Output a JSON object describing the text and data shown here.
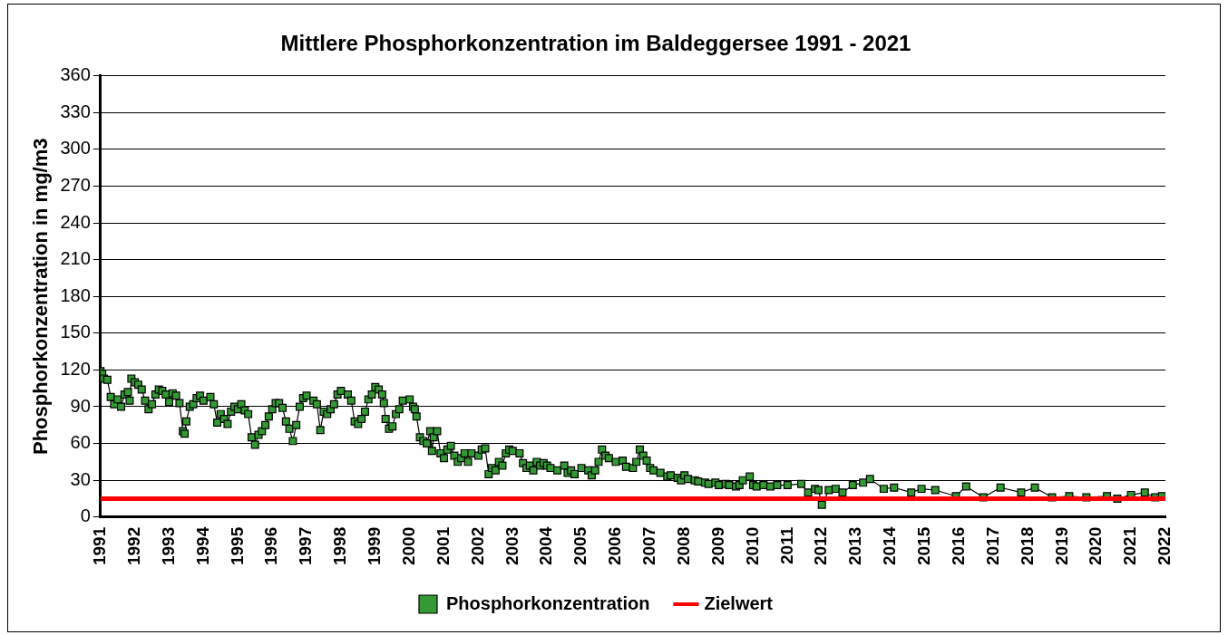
{
  "chart_data": {
    "type": "line",
    "title": "Mittlere Phosphorkonzentration im Baldeggersee 1991 - 2021",
    "ylabel": "Phosphorkonzentration in mg/m3",
    "xlim": [
      1991,
      2022
    ],
    "xticks": [
      1991,
      1992,
      1993,
      1994,
      1995,
      1996,
      1997,
      1998,
      1999,
      2000,
      2001,
      2002,
      2003,
      2004,
      2005,
      2006,
      2007,
      2008,
      2009,
      2010,
      2011,
      2012,
      2013,
      2014,
      2015,
      2016,
      2017,
      2018,
      2019,
      2020,
      2021,
      2022
    ],
    "ylim": [
      0,
      360
    ],
    "yticks": [
      0,
      30,
      60,
      90,
      120,
      150,
      180,
      210,
      240,
      270,
      300,
      330,
      360
    ],
    "grid": "y",
    "legend": "bottom",
    "marker": "square",
    "line_style": "solid",
    "series": [
      {
        "name": "Phosphorkonzentration",
        "color": "#339933",
        "x": [
          1991.0,
          1991.05,
          1991.1,
          1991.2,
          1991.3,
          1991.4,
          1991.5,
          1991.6,
          1991.7,
          1991.8,
          1991.85,
          1991.9,
          1992.0,
          1992.1,
          1992.2,
          1992.3,
          1992.4,
          1992.5,
          1992.6,
          1992.7,
          1992.8,
          1992.9,
          1993.0,
          1993.1,
          1993.2,
          1993.3,
          1993.4,
          1993.45,
          1993.5,
          1993.6,
          1993.7,
          1993.8,
          1993.9,
          1994.0,
          1994.2,
          1994.3,
          1994.4,
          1994.5,
          1994.6,
          1994.7,
          1994.8,
          1994.9,
          1995.0,
          1995.1,
          1995.2,
          1995.3,
          1995.4,
          1995.5,
          1995.6,
          1995.7,
          1995.8,
          1995.9,
          1996.0,
          1996.1,
          1996.2,
          1996.3,
          1996.4,
          1996.5,
          1996.6,
          1996.7,
          1996.8,
          1996.9,
          1997.0,
          1997.2,
          1997.3,
          1997.4,
          1997.5,
          1997.6,
          1997.7,
          1997.8,
          1997.9,
          1998.0,
          1998.2,
          1998.3,
          1998.4,
          1998.5,
          1998.6,
          1998.7,
          1998.8,
          1998.9,
          1999.0,
          1999.1,
          1999.2,
          1999.25,
          1999.3,
          1999.4,
          1999.5,
          1999.6,
          1999.7,
          1999.8,
          2000.0,
          2000.1,
          2000.15,
          2000.2,
          2000.3,
          2000.4,
          2000.5,
          2000.6,
          2000.65,
          2000.7,
          2000.8,
          2000.9,
          2001.0,
          2001.1,
          2001.2,
          2001.3,
          2001.4,
          2001.5,
          2001.6,
          2001.7,
          2001.8,
          2002.0,
          2002.1,
          2002.2,
          2002.3,
          2002.4,
          2002.5,
          2002.6,
          2002.7,
          2002.8,
          2002.9,
          2003.0,
          2003.2,
          2003.3,
          2003.4,
          2003.5,
          2003.6,
          2003.7,
          2003.8,
          2003.9,
          2004.0,
          2004.1,
          2004.3,
          2004.5,
          2004.6,
          2004.7,
          2004.8,
          2005.0,
          2005.2,
          2005.3,
          2005.4,
          2005.5,
          2005.6,
          2005.7,
          2005.8,
          2006.0,
          2006.2,
          2006.3,
          2006.5,
          2006.6,
          2006.7,
          2006.8,
          2006.9,
          2007.0,
          2007.1,
          2007.3,
          2007.5,
          2007.6,
          2007.8,
          2007.9,
          2008.0,
          2008.1,
          2008.3,
          2008.4,
          2008.6,
          2008.7,
          2008.9,
          2009.0,
          2009.2,
          2009.3,
          2009.5,
          2009.6,
          2009.7,
          2009.9,
          2010.0,
          2010.1,
          2010.3,
          2010.5,
          2010.7,
          2011.0,
          2011.4,
          2011.6,
          2011.8,
          2011.9,
          2012.0,
          2012.2,
          2012.4,
          2012.6,
          2012.9,
          2013.2,
          2013.4,
          2013.8,
          2014.1,
          2014.6,
          2014.9,
          2015.3,
          2015.9,
          2016.2,
          2016.7,
          2017.2,
          2017.8,
          2018.2,
          2018.7,
          2019.2,
          2019.7,
          2020.3,
          2020.6,
          2021.0,
          2021.4,
          2021.7,
          2021.9
        ],
        "values": [
          119,
          117,
          113,
          112,
          98,
          92,
          96,
          90,
          100,
          102,
          95,
          113,
          110,
          108,
          104,
          95,
          88,
          92,
          100,
          104,
          103,
          100,
          94,
          101,
          99,
          93,
          70,
          68,
          78,
          90,
          92,
          97,
          99,
          95,
          98,
          92,
          77,
          84,
          80,
          76,
          86,
          90,
          88,
          92,
          87,
          84,
          65,
          59,
          67,
          70,
          75,
          82,
          88,
          93,
          93,
          89,
          78,
          72,
          62,
          75,
          90,
          97,
          99,
          95,
          92,
          71,
          86,
          84,
          88,
          92,
          100,
          103,
          100,
          95,
          78,
          76,
          80,
          86,
          96,
          100,
          106,
          104,
          100,
          93,
          80,
          72,
          74,
          84,
          88,
          95,
          96,
          90,
          88,
          82,
          65,
          62,
          60,
          70,
          54,
          65,
          70,
          52,
          48,
          55,
          58,
          50,
          45,
          48,
          52,
          45,
          52,
          50,
          55,
          56,
          35,
          40,
          38,
          45,
          42,
          52,
          55,
          54,
          52,
          44,
          40,
          42,
          38,
          45,
          42,
          44,
          42,
          40,
          38,
          42,
          36,
          38,
          35,
          40,
          38,
          34,
          38,
          45,
          55,
          50,
          48,
          45,
          46,
          41,
          40,
          45,
          55,
          50,
          46,
          40,
          38,
          36,
          33,
          34,
          32,
          30,
          34,
          31,
          30,
          29,
          28,
          27,
          28,
          26,
          27,
          26,
          25,
          26,
          30,
          33,
          26,
          25,
          26,
          25,
          26,
          26,
          27,
          20,
          23,
          22,
          10,
          22,
          23,
          20,
          26,
          28,
          31,
          23,
          24,
          20,
          23,
          22,
          17,
          25,
          16,
          24,
          20,
          24,
          16,
          17,
          16,
          17,
          15,
          18,
          20,
          16,
          17
        ]
      }
    ],
    "ref_lines": [
      {
        "axis": "y",
        "value": 15,
        "label": "Zielwert",
        "color": "#ff0000"
      }
    ]
  }
}
